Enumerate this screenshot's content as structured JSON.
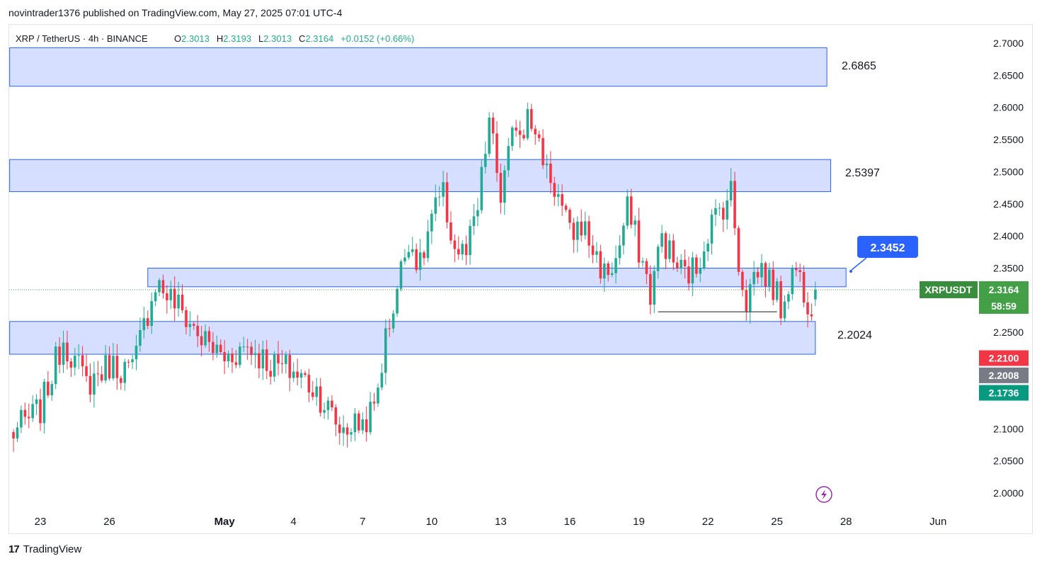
{
  "header": {
    "published_line": "novintrader1376 published on TradingView.com, May 27, 2025 07:01 UTC-4"
  },
  "footer": {
    "brand": "TradingView"
  },
  "colors": {
    "up": "#22ab94",
    "down": "#f23645",
    "zone_fill": "#d1dcff",
    "zone_border": "#2962ff",
    "callout": "#2962ff",
    "symbol_badge": "#388e3c",
    "current_price": "#43a047",
    "red_label": "#f23645",
    "gray_label": "#787b86",
    "teal_label": "#089981",
    "indicator_icon": "#9c27b0"
  },
  "chart_data": {
    "type": "candlestick",
    "symbol": "XRP / TetherUS",
    "interval": "4h",
    "exchange": "BINANCE",
    "ohlc_legend": {
      "o_label": "O",
      "o": "2.3013",
      "h_label": "H",
      "h": "2.3193",
      "l_label": "L",
      "l": "2.3013",
      "c_label": "C",
      "c": "2.3164",
      "change": "+0.0152 (+0.66%)"
    },
    "y_axis": {
      "ticks": [
        "2.7000",
        "2.6500",
        "2.6000",
        "2.5500",
        "2.5000",
        "2.4500",
        "2.4000",
        "2.3500",
        "2.2500",
        "2.1000",
        "2.0500",
        "2.0000"
      ],
      "ylim": [
        1.98,
        2.73
      ]
    },
    "x_axis": {
      "ticks": [
        {
          "label": "23",
          "x": 0
        },
        {
          "label": "26",
          "x": 18
        },
        {
          "label": "May",
          "x": 48,
          "bold": true
        },
        {
          "label": "4",
          "x": 66
        },
        {
          "label": "7",
          "x": 84
        },
        {
          "label": "10",
          "x": 102
        },
        {
          "label": "13",
          "x": 120
        },
        {
          "label": "16",
          "x": 138
        },
        {
          "label": "19",
          "x": 156
        },
        {
          "label": "22",
          "x": 174
        },
        {
          "label": "25",
          "x": 192
        },
        {
          "label": "28",
          "x": 210
        },
        {
          "label": "Jun",
          "x": 234
        }
      ],
      "xlim": [
        -8,
        247
      ],
      "note": "x values are 4h candle index from Apr 23 00:00"
    },
    "zones": [
      {
        "label": "2.6865",
        "low": 2.633,
        "high": 2.693,
        "x_start": -8,
        "x_end": 205
      },
      {
        "label": "2.5397",
        "low": 2.469,
        "high": 2.519,
        "x_start": -8,
        "x_end": 206
      },
      {
        "label": "2.3452",
        "low": 2.321,
        "high": 2.35,
        "x_start": 28,
        "x_end": 210
      },
      {
        "label": "2.2024",
        "low": 2.216,
        "high": 2.267,
        "x_start": -8,
        "x_end": 202
      }
    ],
    "support_line": {
      "y": 2.282,
      "x_start": 161,
      "x_end": 192
    },
    "price_labels": {
      "symbol": "XRPUSDT",
      "current": "2.3164",
      "countdown": "58:59",
      "red": "2.2100",
      "gray": "2.2008",
      "teal": "2.1736"
    },
    "anchors": [
      {
        "x": -8,
        "c": 2.09
      },
      {
        "x": 0,
        "c": 2.13
      },
      {
        "x": 6,
        "c": 2.24
      },
      {
        "x": 12,
        "c": 2.17
      },
      {
        "x": 18,
        "c": 2.2
      },
      {
        "x": 24,
        "c": 2.19
      },
      {
        "x": 30,
        "c": 2.33
      },
      {
        "x": 36,
        "c": 2.29
      },
      {
        "x": 42,
        "c": 2.24
      },
      {
        "x": 48,
        "c": 2.21
      },
      {
        "x": 54,
        "c": 2.23
      },
      {
        "x": 60,
        "c": 2.2
      },
      {
        "x": 66,
        "c": 2.19
      },
      {
        "x": 72,
        "c": 2.16
      },
      {
        "x": 78,
        "c": 2.1
      },
      {
        "x": 84,
        "c": 2.11
      },
      {
        "x": 87,
        "c": 2.13
      },
      {
        "x": 90,
        "c": 2.24
      },
      {
        "x": 93,
        "c": 2.32
      },
      {
        "x": 96,
        "c": 2.4
      },
      {
        "x": 99,
        "c": 2.35
      },
      {
        "x": 102,
        "c": 2.43
      },
      {
        "x": 105,
        "c": 2.46
      },
      {
        "x": 108,
        "c": 2.38
      },
      {
        "x": 111,
        "c": 2.37
      },
      {
        "x": 114,
        "c": 2.44
      },
      {
        "x": 117,
        "c": 2.58
      },
      {
        "x": 120,
        "c": 2.46
      },
      {
        "x": 122,
        "c": 2.52
      },
      {
        "x": 124,
        "c": 2.58
      },
      {
        "x": 126,
        "c": 2.56
      },
      {
        "x": 127,
        "c": 2.62
      },
      {
        "x": 129,
        "c": 2.55
      },
      {
        "x": 132,
        "c": 2.51
      },
      {
        "x": 135,
        "c": 2.46
      },
      {
        "x": 138,
        "c": 2.4
      },
      {
        "x": 141,
        "c": 2.42
      },
      {
        "x": 144,
        "c": 2.38
      },
      {
        "x": 147,
        "c": 2.34
      },
      {
        "x": 150,
        "c": 2.36
      },
      {
        "x": 153,
        "c": 2.44
      },
      {
        "x": 156,
        "c": 2.38
      },
      {
        "x": 159,
        "c": 2.31
      },
      {
        "x": 162,
        "c": 2.4
      },
      {
        "x": 165,
        "c": 2.36
      },
      {
        "x": 168,
        "c": 2.34
      },
      {
        "x": 171,
        "c": 2.35
      },
      {
        "x": 174,
        "c": 2.41
      },
      {
        "x": 177,
        "c": 2.44
      },
      {
        "x": 180,
        "c": 2.47
      },
      {
        "x": 182,
        "c": 2.36
      },
      {
        "x": 184,
        "c": 2.3
      },
      {
        "x": 186,
        "c": 2.34
      },
      {
        "x": 188,
        "c": 2.35
      },
      {
        "x": 191,
        "c": 2.32
      },
      {
        "x": 193,
        "c": 2.29
      },
      {
        "x": 195,
        "c": 2.33
      },
      {
        "x": 197,
        "c": 2.35
      },
      {
        "x": 199,
        "c": 2.32
      },
      {
        "x": 200,
        "c": 2.3
      },
      {
        "x": 201,
        "c": 2.3
      },
      {
        "x": 202,
        "c": 2.3164
      }
    ]
  }
}
